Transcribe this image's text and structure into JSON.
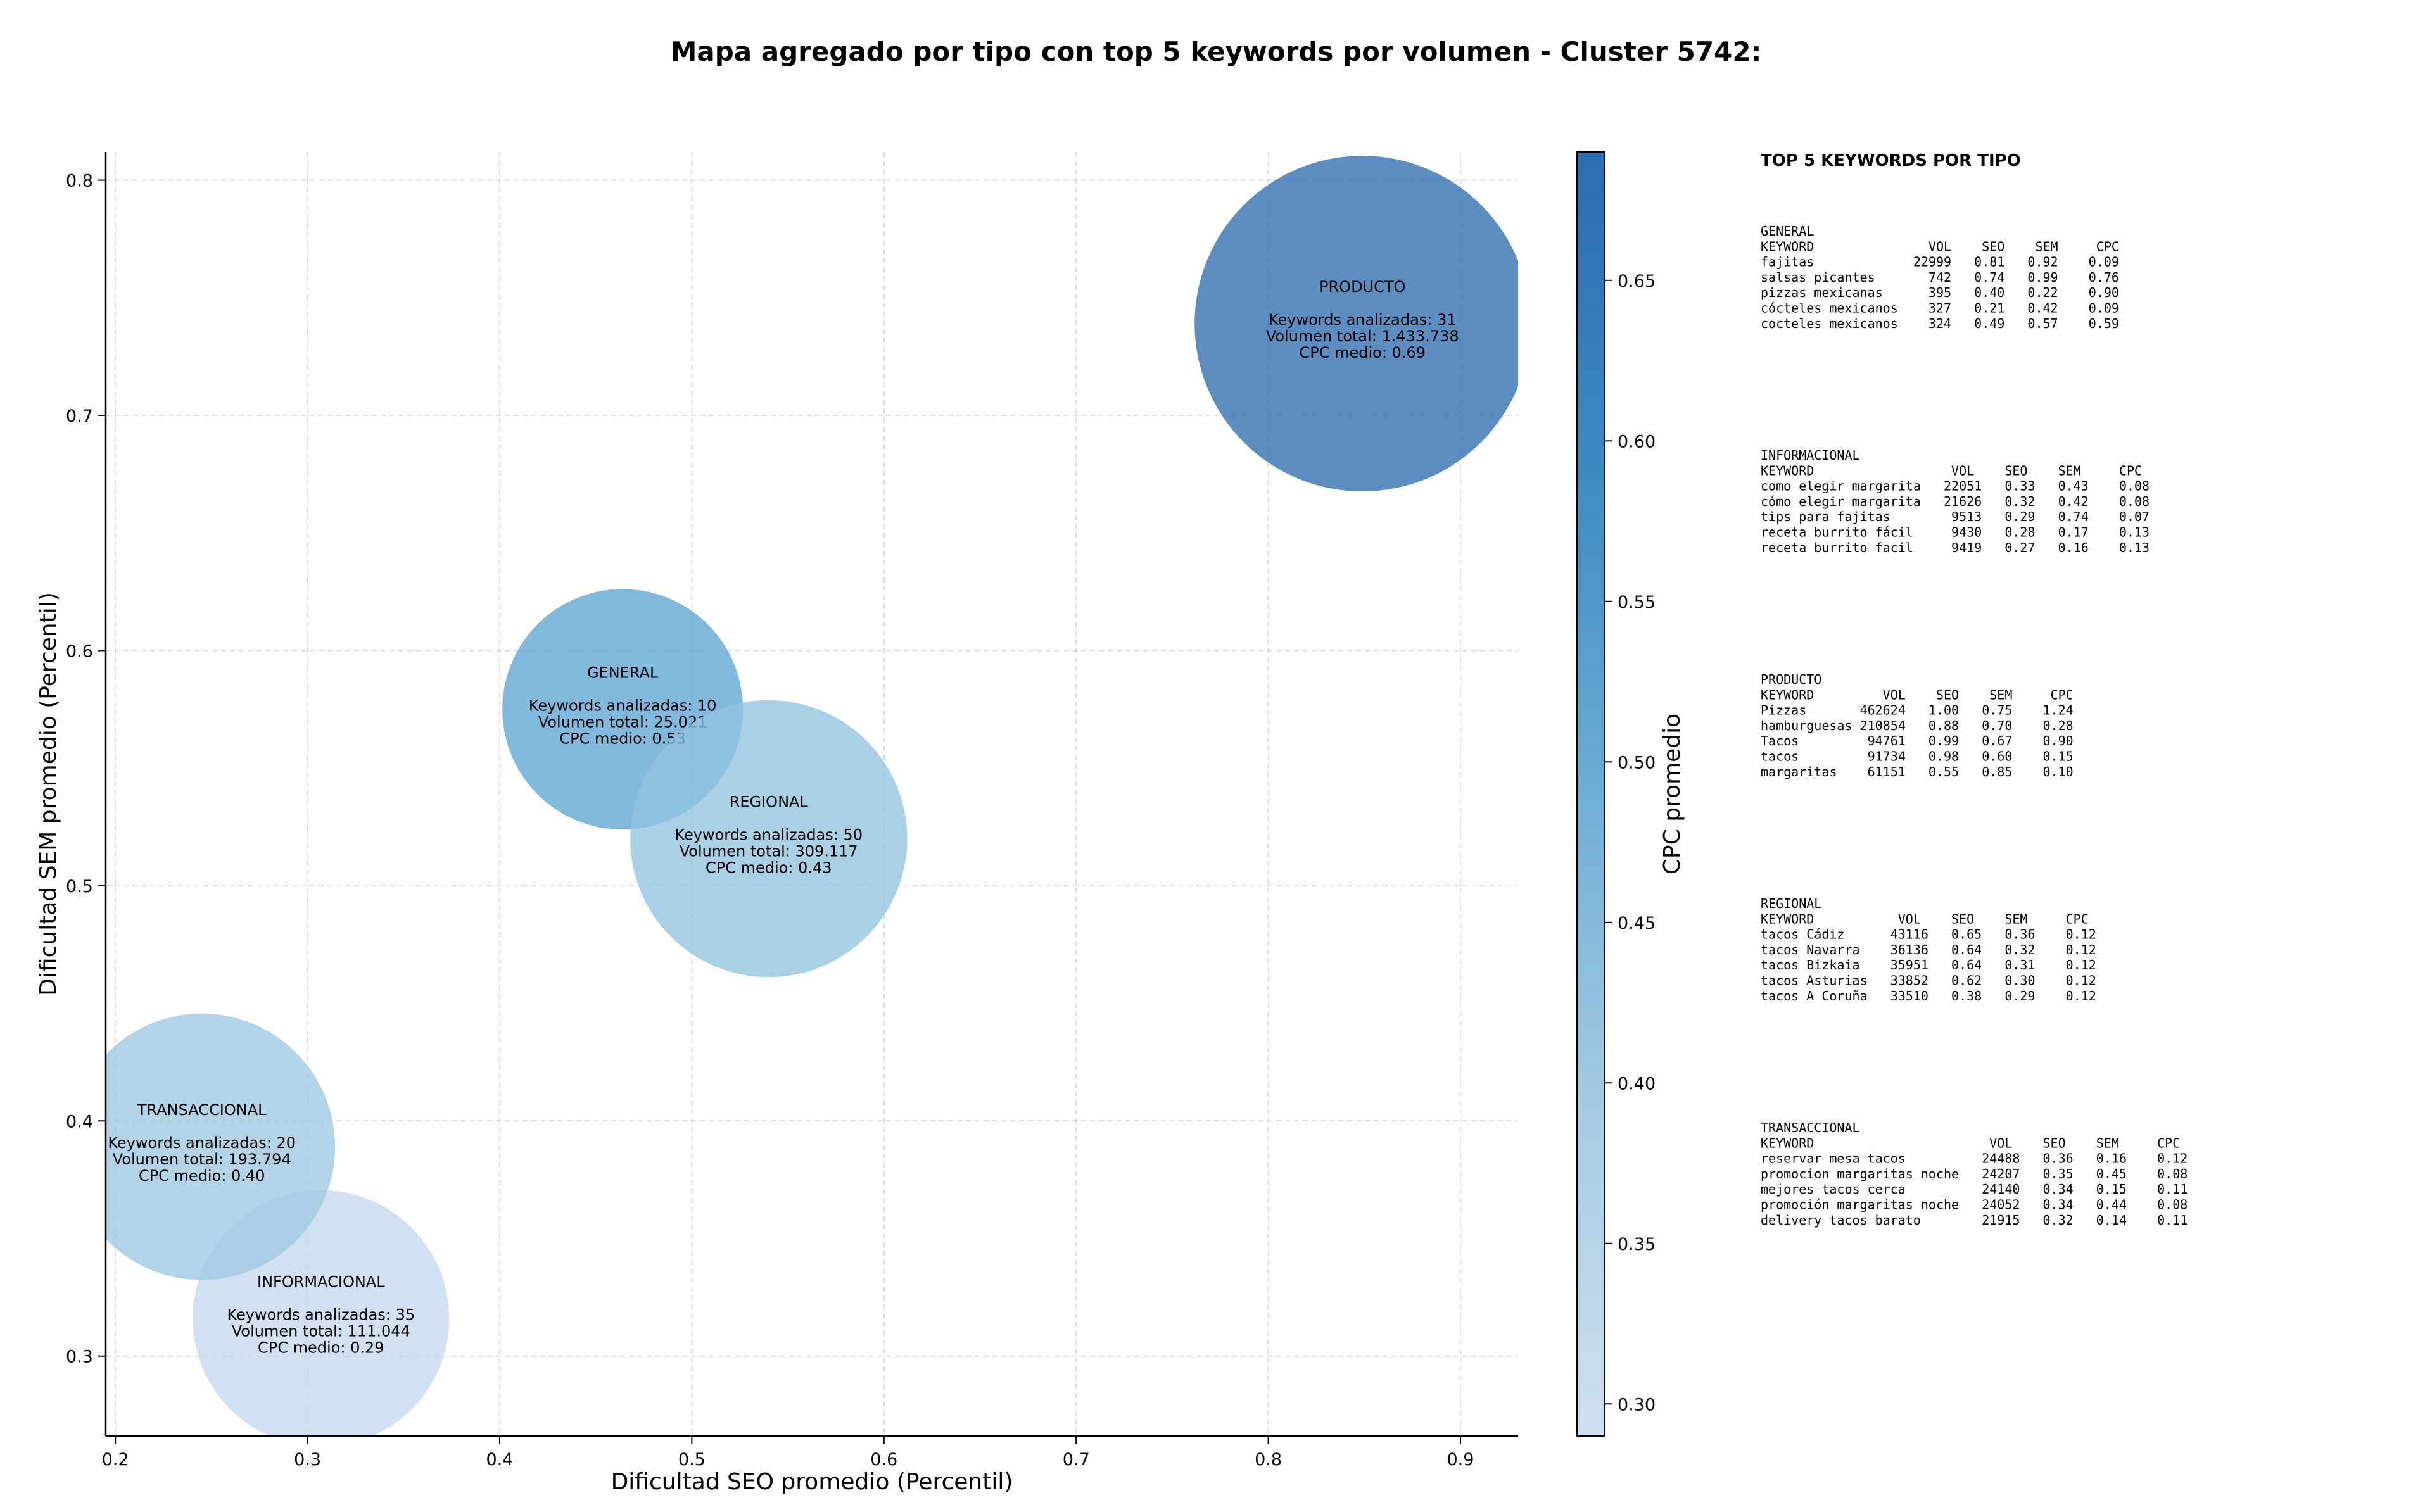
{
  "chart_data": {
    "type": "scatter",
    "title": "Mapa agregado por tipo con top 5 keywords por volumen - Cluster 5742:",
    "xlabel": "Dificultad SEO promedio (Percentil)",
    "ylabel": "Dificultad SEM promedio (Percentil)",
    "xlim": [
      0.195,
      0.93
    ],
    "ylim": [
      0.266,
      0.812
    ],
    "xticks": [
      "0.2",
      "0.3",
      "0.4",
      "0.5",
      "0.6",
      "0.7",
      "0.8",
      "0.9"
    ],
    "yticks": [
      "0.3",
      "0.4",
      "0.5",
      "0.6",
      "0.7",
      "0.8"
    ],
    "grid": true,
    "colorbar": {
      "label": "CPC promedio",
      "range": [
        0.29,
        0.69
      ],
      "ticks": [
        "0.30",
        "0.35",
        "0.40",
        "0.45",
        "0.50",
        "0.55",
        "0.60",
        "0.65"
      ],
      "colors": [
        "#d0e0f1",
        "#a6cbe3",
        "#6eaed6",
        "#3d8ac3",
        "#2b6cb0"
      ]
    },
    "points": [
      {
        "name": "GENERAL",
        "seo": 0.464,
        "sem": 0.575,
        "cpc": 0.53,
        "color": "#5da5d3",
        "line1": "Keywords analizadas: 10",
        "line2": "Volumen total: 25.021",
        "line3": "CPC medio: 0.53",
        "volume": 25021
      },
      {
        "name": "INFORMACIONAL",
        "seo": 0.307,
        "sem": 0.316,
        "cpc": 0.29,
        "color": "#c4d9ee",
        "line1": "Keywords analizadas: 35",
        "line2": "Volumen total: 111.044",
        "line3": "CPC medio: 0.29",
        "volume": 111044
      },
      {
        "name": "PRODUCTO",
        "seo": 0.849,
        "sem": 0.739,
        "cpc": 0.69,
        "color": "#2d6db0",
        "line1": "Keywords analizadas: 31",
        "line2": "Volumen total: 1.433.738",
        "line3": "CPC medio: 0.69",
        "volume": 1433738
      },
      {
        "name": "REGIONAL",
        "seo": 0.54,
        "sem": 0.52,
        "cpc": 0.43,
        "color": "#92c3df",
        "line1": "Keywords analizadas: 50",
        "line2": "Volumen total: 309.117",
        "line3": "CPC medio: 0.43",
        "volume": 309117
      },
      {
        "name": "TRANSACCIONAL",
        "seo": 0.245,
        "sem": 0.389,
        "cpc": 0.4,
        "color": "#9dc8e1",
        "line1": "Keywords analizadas: 20",
        "line2": "Volumen total: 193.794",
        "line3": "CPC medio: 0.40",
        "volume": 193794
      }
    ]
  },
  "side_panel": {
    "heading": "TOP 5 KEYWORDS POR TIPO",
    "blocks": [
      {
        "lines": [
          "GENERAL",
          "KEYWORD               VOL    SEO    SEM     CPC",
          "fajitas             22999   0.81   0.92    0.09",
          "salsas picantes       742   0.74   0.99    0.76",
          "pizzas mexicanas      395   0.40   0.22    0.90",
          "cócteles mexicanos    327   0.21   0.42    0.09",
          "cocteles mexicanos    324   0.49   0.57    0.59"
        ]
      },
      {
        "lines": [
          "INFORMACIONAL",
          "KEYWORD                  VOL    SEO    SEM     CPC",
          "como elegir margarita   22051   0.33   0.43    0.08",
          "cómo elegir margarita   21626   0.32   0.42    0.08",
          "tips para fajitas        9513   0.29   0.74    0.07",
          "receta burrito fácil     9430   0.28   0.17    0.13",
          "receta burrito facil     9419   0.27   0.16    0.13"
        ]
      },
      {
        "lines": [
          "PRODUCTO",
          "KEYWORD         VOL    SEO    SEM     CPC",
          "Pizzas       462624   1.00   0.75    1.24",
          "hamburguesas 210854   0.88   0.70    0.28",
          "Tacos         94761   0.99   0.67    0.90",
          "tacos         91734   0.98   0.60    0.15",
          "margaritas    61151   0.55   0.85    0.10"
        ]
      },
      {
        "lines": [
          "REGIONAL",
          "KEYWORD           VOL    SEO    SEM     CPC",
          "tacos Cádiz      43116   0.65   0.36    0.12",
          "tacos Navarra    36136   0.64   0.32    0.12",
          "tacos Bizkaia    35951   0.64   0.31    0.12",
          "tacos Asturias   33852   0.62   0.30    0.12",
          "tacos A Coruña   33510   0.38   0.29    0.12"
        ]
      },
      {
        "lines": [
          "TRANSACCIONAL",
          "KEYWORD                       VOL    SEO    SEM     CPC",
          "reservar mesa tacos          24488   0.36   0.16    0.12",
          "promocion margaritas noche   24207   0.35   0.45    0.08",
          "mejores tacos cerca          24140   0.34   0.15    0.11",
          "promoción margaritas noche   24052   0.34   0.44    0.08",
          "delivery tacos barato        21915   0.32   0.14    0.11"
        ]
      }
    ]
  }
}
